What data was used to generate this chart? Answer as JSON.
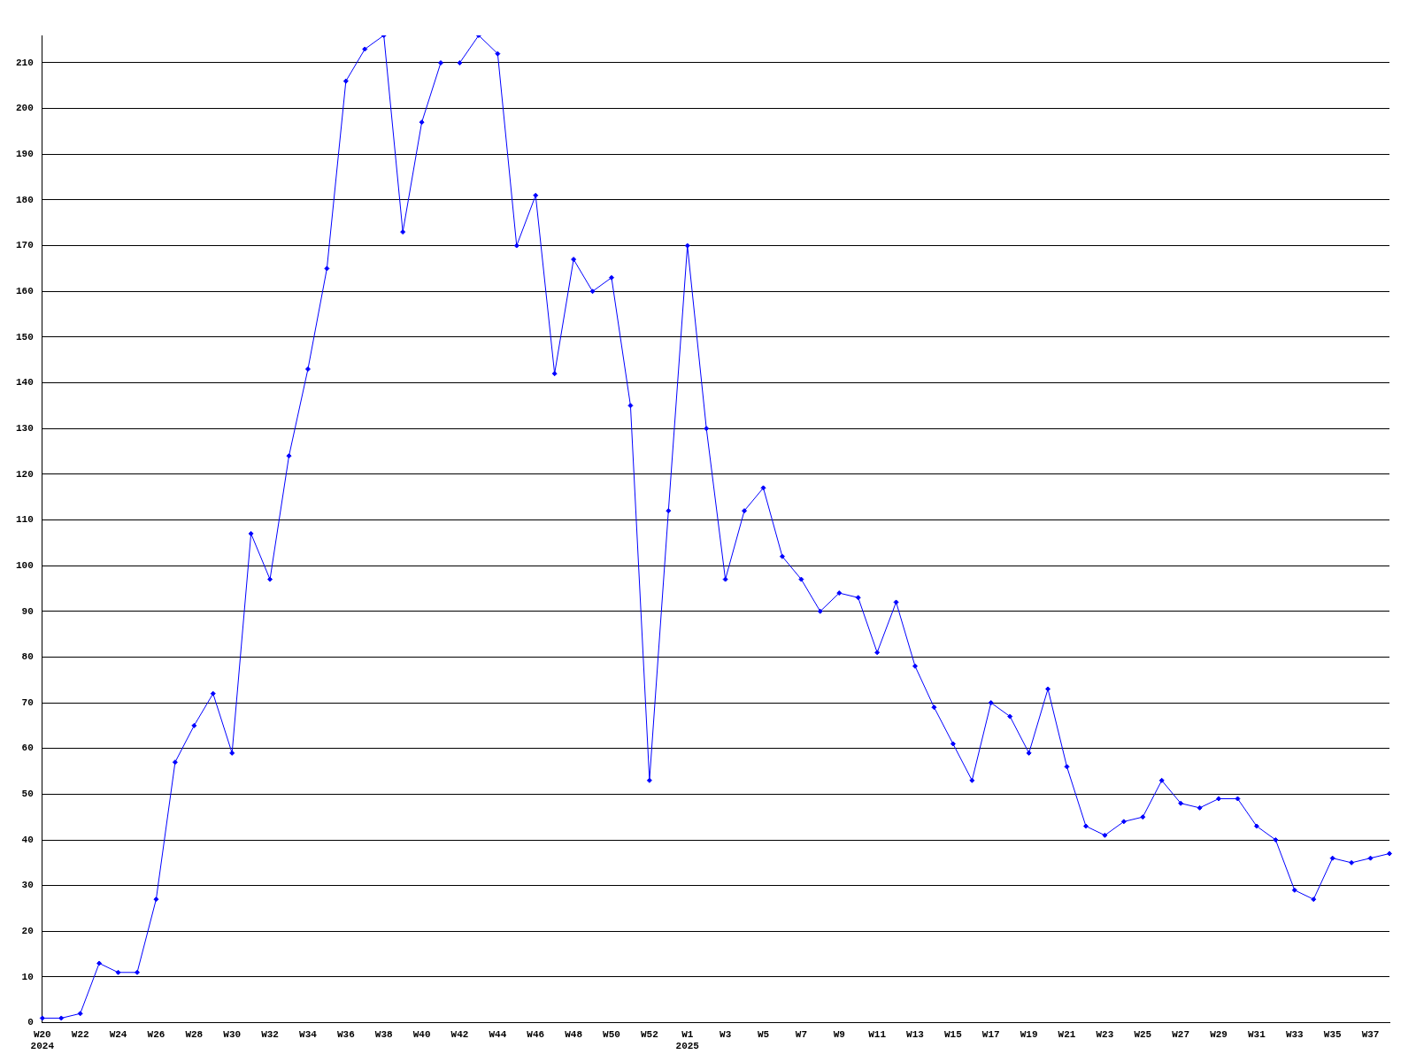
{
  "chart_data": {
    "type": "line",
    "categories": [
      "W20\n2024",
      null,
      "W22",
      null,
      "W24",
      null,
      "W26",
      null,
      "W28",
      null,
      "W30",
      null,
      "W32",
      null,
      "W34",
      null,
      "W36",
      null,
      "W38",
      null,
      "W40",
      null,
      "W42",
      null,
      "W44",
      null,
      "W46",
      null,
      "W48",
      null,
      "W50",
      null,
      "W52",
      null,
      "W1\n2025",
      null,
      "W3",
      null,
      "W5",
      null,
      "W7",
      null,
      "W9",
      null,
      "W11",
      null,
      "W13",
      null,
      "W15",
      null,
      "W17",
      null,
      "W19",
      null,
      "W21",
      null,
      "W23",
      null,
      "W25",
      null,
      "W27",
      null,
      "W29",
      null,
      "W31",
      null,
      "W33",
      null,
      "W35",
      null,
      "W37",
      null
    ],
    "series": [
      {
        "color": "#0000ff",
        "values": [
          1,
          1,
          2,
          13,
          11,
          11,
          27,
          57,
          65,
          72,
          59,
          107,
          97,
          124,
          143,
          165,
          206,
          213,
          216,
          173,
          197,
          210,
          null,
          null,
          null,
          null,
          null,
          null,
          null,
          null,
          null,
          null,
          null,
          null,
          null,
          null,
          null,
          null,
          null,
          null,
          null,
          null,
          null,
          null,
          null,
          null,
          null,
          null,
          null,
          null,
          null,
          null,
          null,
          null,
          null,
          null,
          null,
          null,
          null,
          null,
          null,
          null,
          null,
          null,
          null,
          null,
          null,
          null,
          null,
          null,
          null,
          null
        ]
      },
      {
        "color": "#0000ff",
        "values": [
          null,
          null,
          null,
          null,
          null,
          null,
          null,
          null,
          null,
          null,
          null,
          null,
          null,
          null,
          null,
          null,
          null,
          null,
          null,
          null,
          null,
          null,
          210,
          216,
          212,
          170,
          181,
          142,
          167,
          160,
          163,
          135,
          53,
          112,
          170,
          130,
          97,
          112,
          117,
          102,
          97,
          90,
          94,
          93,
          81,
          92,
          78,
          69,
          61,
          53,
          70,
          67,
          59,
          73,
          56,
          43,
          41,
          44,
          45,
          53,
          48,
          47,
          49,
          49,
          43,
          40,
          29,
          27,
          36,
          35,
          36,
          37
        ]
      }
    ],
    "ylim": [
      0,
      216
    ],
    "yticks": [
      0,
      10,
      20,
      30,
      40,
      50,
      60,
      70,
      80,
      90,
      100,
      110,
      120,
      130,
      140,
      150,
      160,
      170,
      180,
      190,
      200,
      210
    ],
    "grid": "y",
    "legend": false,
    "marker": "diamond",
    "line_style": "solid"
  }
}
